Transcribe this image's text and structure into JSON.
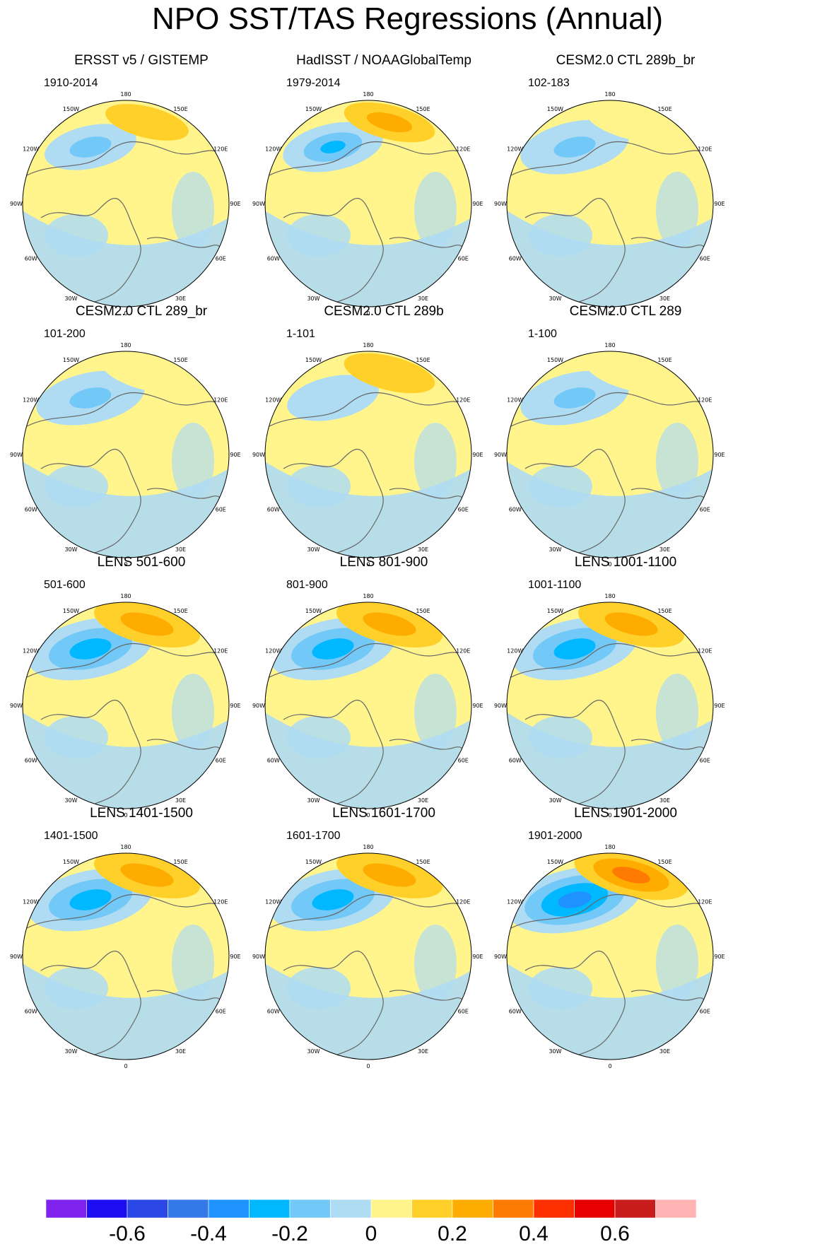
{
  "title": "NPO SST/TAS Regressions (Annual)",
  "longitude_labels": [
    "180",
    "150E",
    "120E",
    "90E",
    "60E",
    "30E",
    "0",
    "30W",
    "60W",
    "90W",
    "120W",
    "150W"
  ],
  "panels": [
    {
      "title": "ERSST v5 / GISTEMP",
      "years": "1910-2014",
      "pattern": "obs1"
    },
    {
      "title": "HadISST / NOAAGlobalTemp",
      "years": "1979-2014",
      "pattern": "obs2"
    },
    {
      "title": "CESM2.0 CTL 289b_br",
      "years": "102-183",
      "pattern": "weak"
    },
    {
      "title": "CESM2.0 CTL 289_br",
      "years": "101-200",
      "pattern": "weak"
    },
    {
      "title": "CESM2.0 CTL 289b",
      "years": "1-101",
      "pattern": "alt"
    },
    {
      "title": "CESM2.0 CTL 289",
      "years": "1-100",
      "pattern": "weak"
    },
    {
      "title": "LENS 501-600",
      "years": "501-600",
      "pattern": "strong"
    },
    {
      "title": "LENS 801-900",
      "years": "801-900",
      "pattern": "strong"
    },
    {
      "title": "LENS 1001-1100",
      "years": "1001-1100",
      "pattern": "strong"
    },
    {
      "title": "LENS 1401-1500",
      "years": "1401-1500",
      "pattern": "strong"
    },
    {
      "title": "LENS 1601-1700",
      "years": "1601-1700",
      "pattern": "strong"
    },
    {
      "title": "LENS 1901-2000",
      "years": "1901-2000",
      "pattern": "strongest"
    }
  ],
  "colorbar": {
    "colors": [
      "#7f22ee",
      "#1c0df2",
      "#2b48e6",
      "#3578e8",
      "#1e93ff",
      "#00b8ff",
      "#72c8f7",
      "#afdcf2",
      "#fff58c",
      "#ffd02a",
      "#ffac00",
      "#ff7a00",
      "#ff3000",
      "#e60000",
      "#c91c1c",
      "#ffb3b3"
    ],
    "tick_labels": [
      "-0.6",
      "-0.4",
      "-0.2",
      "0",
      "0.2",
      "0.4",
      "0.6"
    ],
    "tick_values": [
      -0.6,
      -0.4,
      -0.2,
      0,
      0.2,
      0.4,
      0.6
    ],
    "level_min": -0.8,
    "level_step": 0.1
  }
}
